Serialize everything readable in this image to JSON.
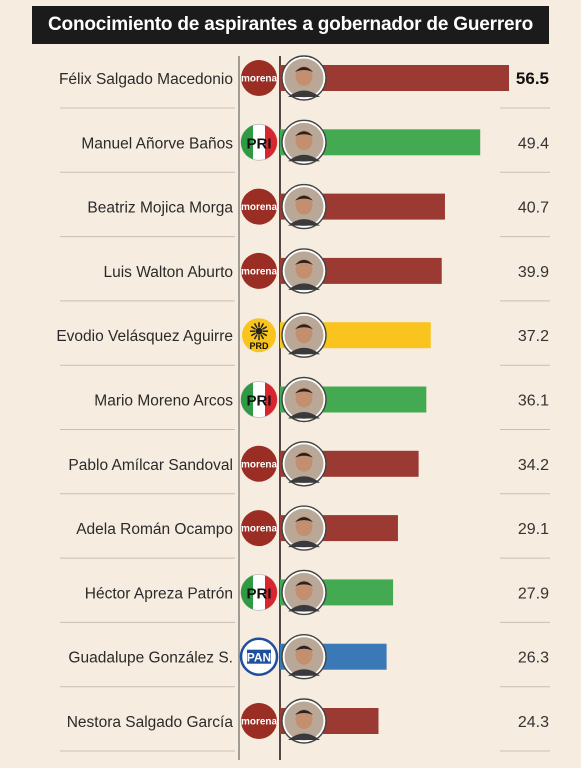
{
  "title": "Conocimiento de aspirantes a gobernador de Guerrero",
  "party_colors": {
    "morena": "#9a3a32",
    "PRI": "#43aa52",
    "PRD": "#f9c41d",
    "PAN": "#3b79b6"
  },
  "chart_data": {
    "type": "bar",
    "orientation": "horizontal",
    "title": "Conocimiento de aspirantes a gobernador de Guerrero",
    "xlim": [
      0,
      60
    ],
    "categories": [
      "Félix Salgado Macedonio",
      "Manuel Añorve Baños",
      "Beatriz Mojica Morga",
      "Luis Walton Aburto",
      "Evodio Velásquez Aguirre",
      "Mario Moreno Arcos",
      "Pablo Amílcar Sandoval",
      "Adela Román Ocampo",
      "Héctor Apreza Patrón",
      "Guadalupe González S.",
      "Nestora Salgado García"
    ],
    "values": [
      56.5,
      49.4,
      40.7,
      39.9,
      37.2,
      36.1,
      34.2,
      29.1,
      27.9,
      26.3,
      24.3
    ],
    "value_labels": [
      "56.5",
      "49.4",
      "40.7",
      "39.9",
      "37.2",
      "36.1",
      "34.2",
      "29.1",
      "27.9",
      "26.3",
      "24.3"
    ],
    "parties": [
      "morena",
      "PRI",
      "morena",
      "morena",
      "PRD",
      "PRI",
      "morena",
      "morena",
      "PRI",
      "PAN",
      "morena"
    ],
    "party_logo_text": {
      "morena": "morena",
      "PRI": "PRI",
      "PRD": "PRD",
      "PAN": "PAN"
    }
  }
}
